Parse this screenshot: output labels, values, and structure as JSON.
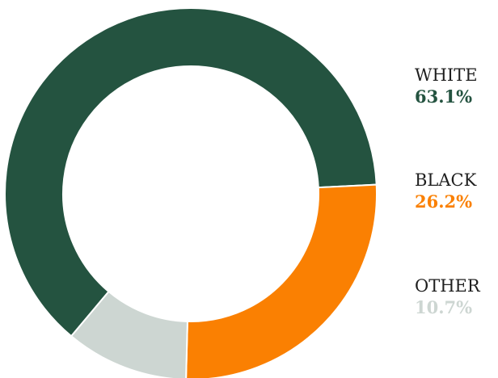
{
  "chart_data": {
    "type": "pie",
    "style": "donut",
    "title": "",
    "legend_position": "right",
    "categories": [
      "WHITE",
      "BLACK",
      "OTHER"
    ],
    "values": [
      63.1,
      26.2,
      10.7
    ],
    "value_labels": [
      "63.1%",
      "26.2%",
      "10.7%"
    ],
    "colors": [
      "#245340",
      "#fa8002",
      "#cdd6d2"
    ]
  }
}
